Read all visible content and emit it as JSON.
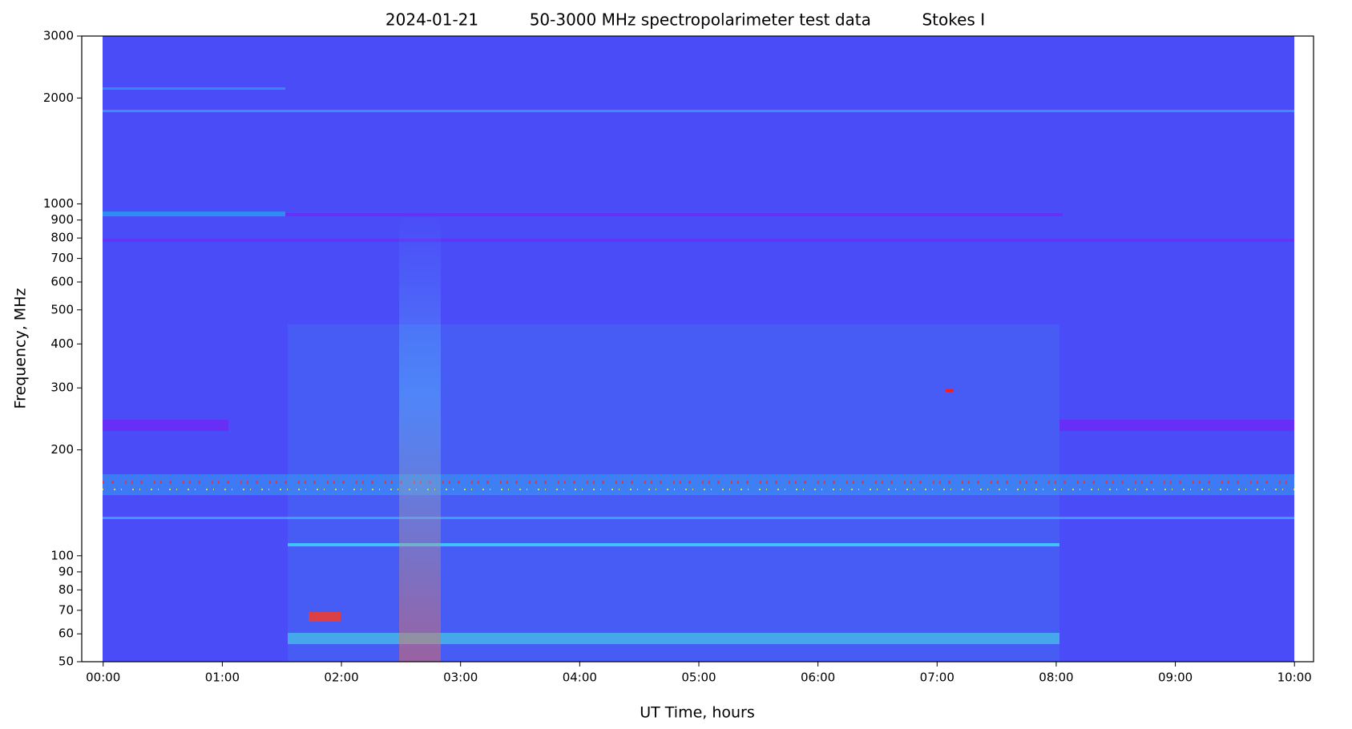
{
  "chart_data": {
    "type": "spectrogram",
    "title": "2024-01-21          50-3000 MHz spectropolarimeter test data          Stokes I",
    "xlabel": "UT Time, hours",
    "ylabel": "Frequency, MHz",
    "xlim": [
      -0.18,
      10.16
    ],
    "xticks": [
      {
        "value": 0,
        "label": "00:00"
      },
      {
        "value": 1,
        "label": "01:00"
      },
      {
        "value": 2,
        "label": "02:00"
      },
      {
        "value": 3,
        "label": "03:00"
      },
      {
        "value": 4,
        "label": "04:00"
      },
      {
        "value": 5,
        "label": "05:00"
      },
      {
        "value": 6,
        "label": "06:00"
      },
      {
        "value": 7,
        "label": "07:00"
      },
      {
        "value": 8,
        "label": "08:00"
      },
      {
        "value": 9,
        "label": "09:00"
      },
      {
        "value": 10,
        "label": "10:00"
      }
    ],
    "ylim": [
      50,
      3000
    ],
    "yscale": "log",
    "yticks": [
      50,
      60,
      70,
      80,
      90,
      100,
      200,
      300,
      400,
      500,
      600,
      700,
      800,
      900,
      1000,
      2000,
      3000
    ]
  }
}
